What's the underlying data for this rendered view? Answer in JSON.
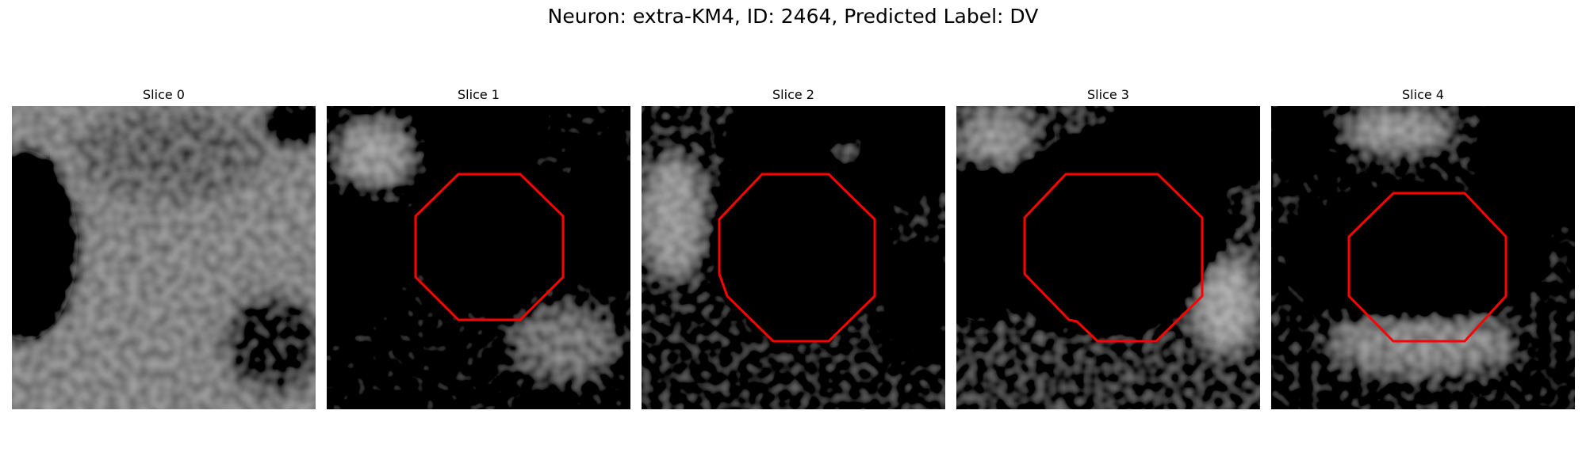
{
  "figure": {
    "title": "Neuron: extra-KM4, ID: 2464, Predicted Label: DV",
    "outline_color": "#ff0000"
  },
  "slices": [
    {
      "title": "Slice 0",
      "has_outline": false
    },
    {
      "title": "Slice 1",
      "has_outline": true
    },
    {
      "title": "Slice 2",
      "has_outline": true
    },
    {
      "title": "Slice 3",
      "has_outline": true
    },
    {
      "title": "Slice 4",
      "has_outline": true
    }
  ]
}
